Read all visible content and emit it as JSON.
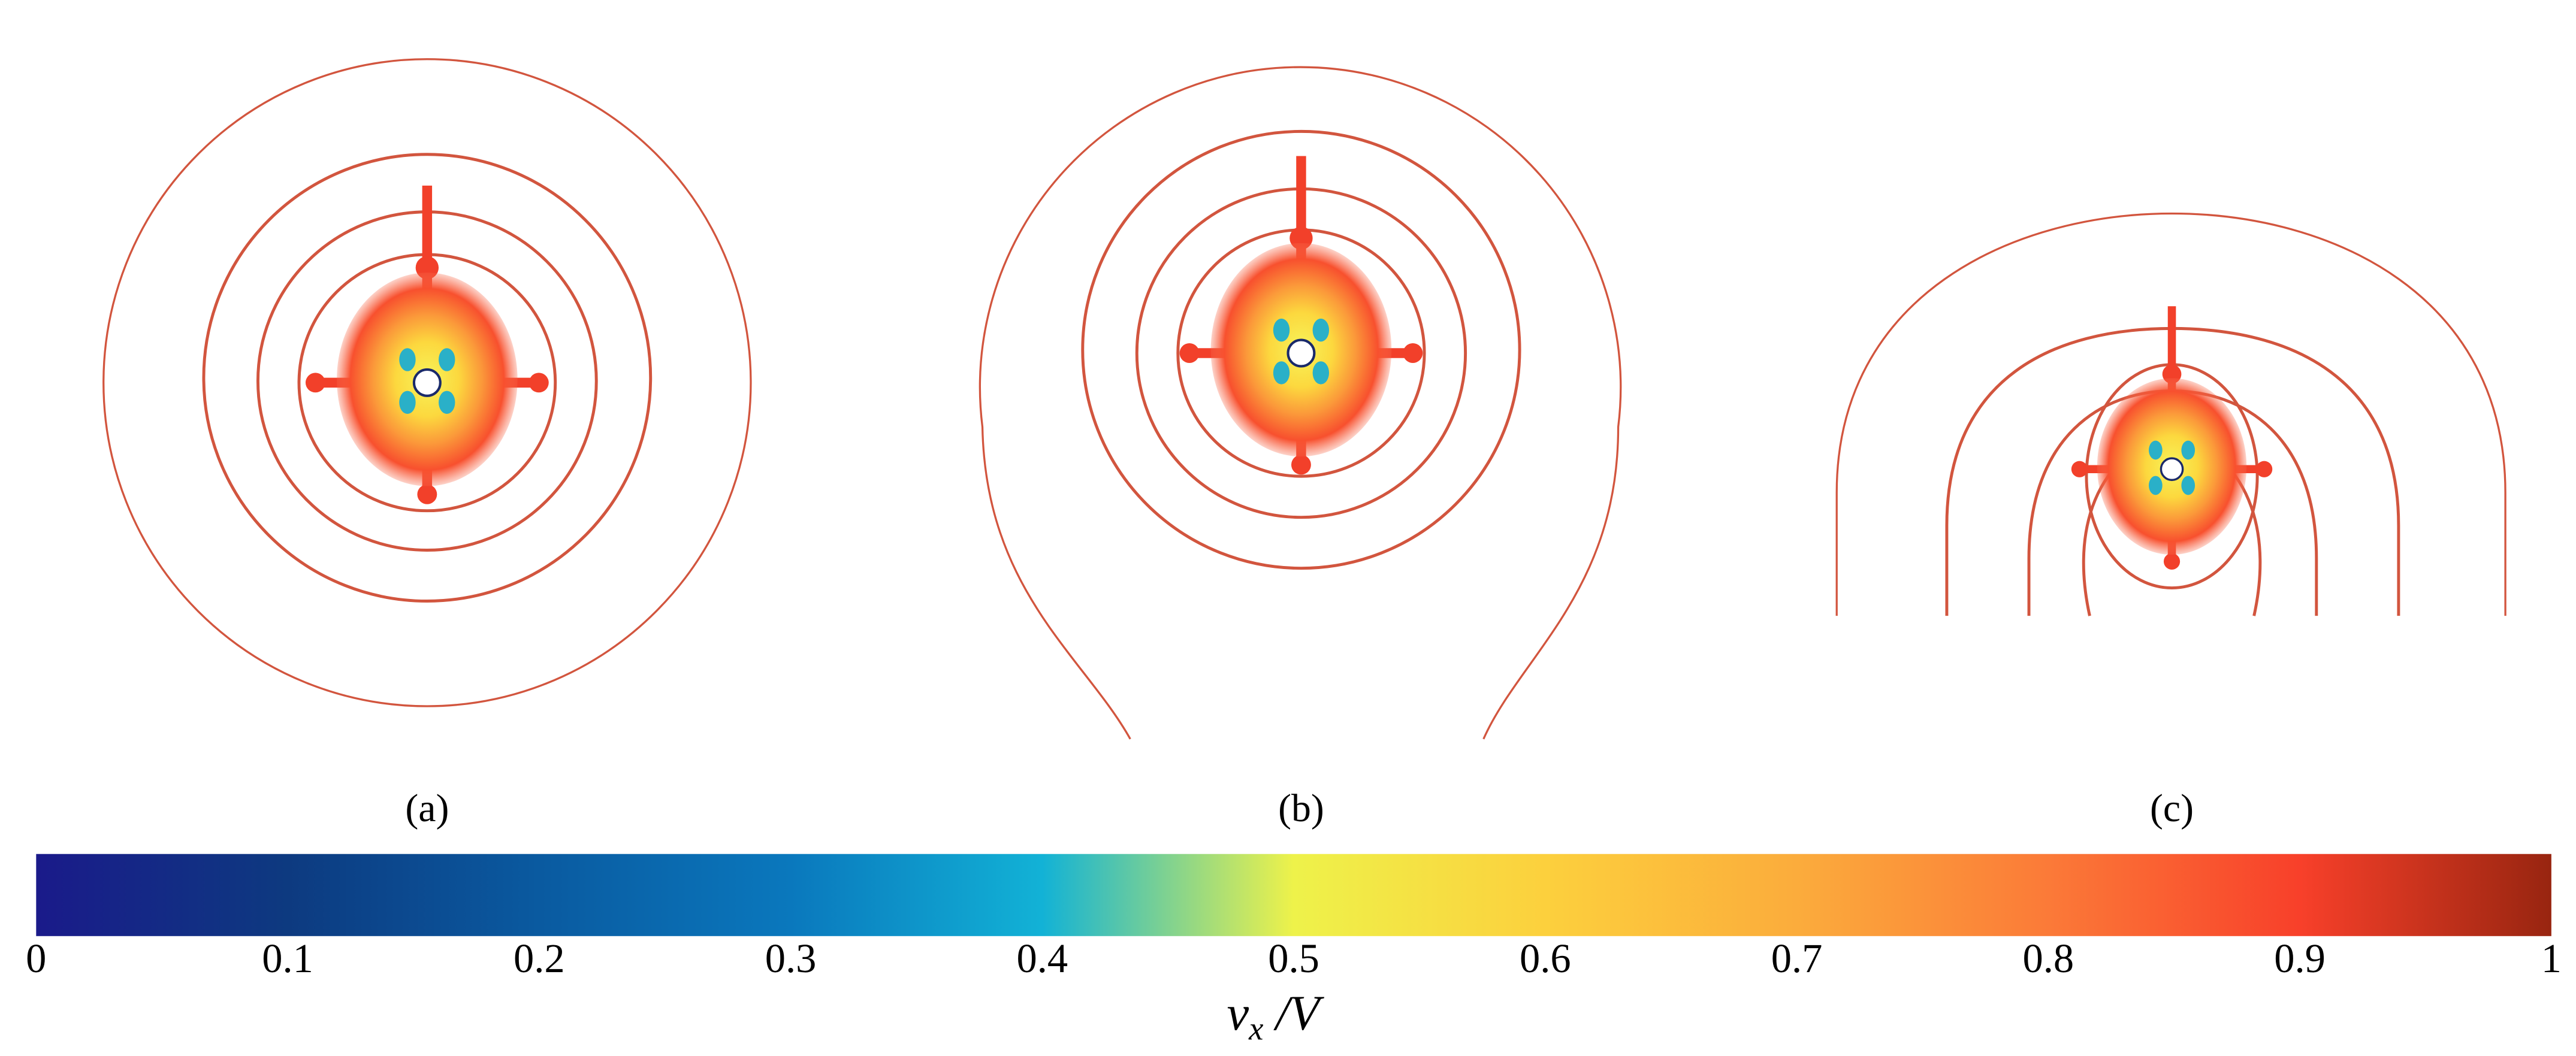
{
  "panels": [
    {
      "label": "(a)"
    },
    {
      "label": "(b)"
    },
    {
      "label": "(c)"
    }
  ],
  "chart_data": {
    "type": "colorbar",
    "xlim": [
      0,
      1
    ],
    "xticks": [
      0,
      0.1,
      0.2,
      0.3,
      0.4,
      0.5,
      0.6,
      0.7,
      0.8,
      0.9,
      1
    ],
    "colors": [
      "#1a1a8a",
      "#0d3a80",
      "#0a5aa0",
      "#0a78bd",
      "#12b2d6",
      "#eef24a",
      "#fcd03d",
      "#fbac3c",
      "#fb7a38",
      "#f8402a",
      "#982510"
    ],
    "xlabel": {
      "symbol": "v",
      "subscript": "x",
      "rest": " /V"
    }
  }
}
